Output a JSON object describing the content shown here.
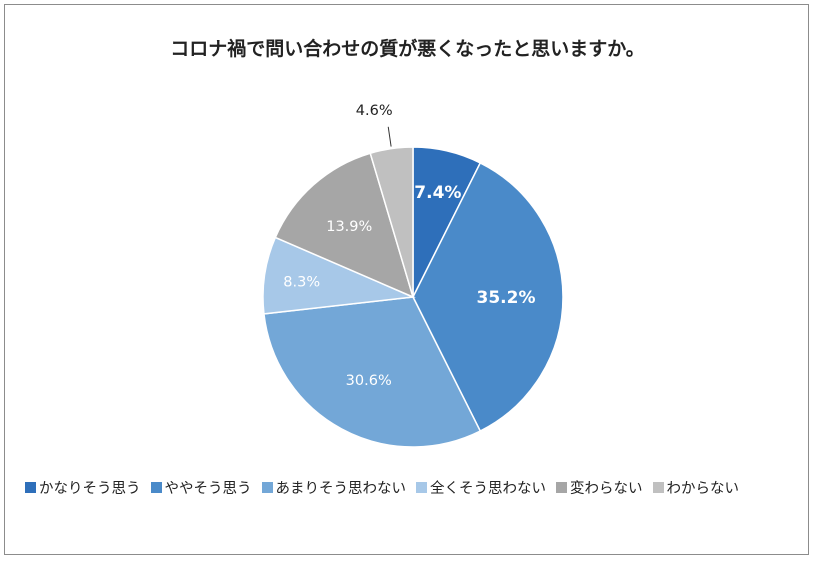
{
  "chart_data": {
    "type": "pie",
    "title": "コロナ禍で問い合わせの質が悪くなったと思いますか。",
    "categories": [
      "かなりそう思う",
      "ややそう思う",
      "あまりそう思わない",
      "全くそう思わない",
      "変わらない",
      "わからない"
    ],
    "values": [
      7.4,
      35.2,
      30.6,
      8.3,
      13.9,
      4.6
    ],
    "data_labels": [
      "7.4%",
      "35.2%",
      "30.6%",
      "8.3%",
      "13.9%",
      "4.6%"
    ],
    "colors": [
      "#2e6fba",
      "#4a8ac9",
      "#73a7d7",
      "#a7c8e8",
      "#a6a6a6",
      "#c0c0c0"
    ],
    "label_colors": [
      "#ffffff",
      "#ffffff",
      "#ffffff",
      "#ffffff",
      "#ffffff",
      "#222222"
    ],
    "label_bold": [
      true,
      true,
      false,
      false,
      false,
      false
    ],
    "start_angle": "12 o'clock, clockwise",
    "legend_position": "bottom"
  }
}
